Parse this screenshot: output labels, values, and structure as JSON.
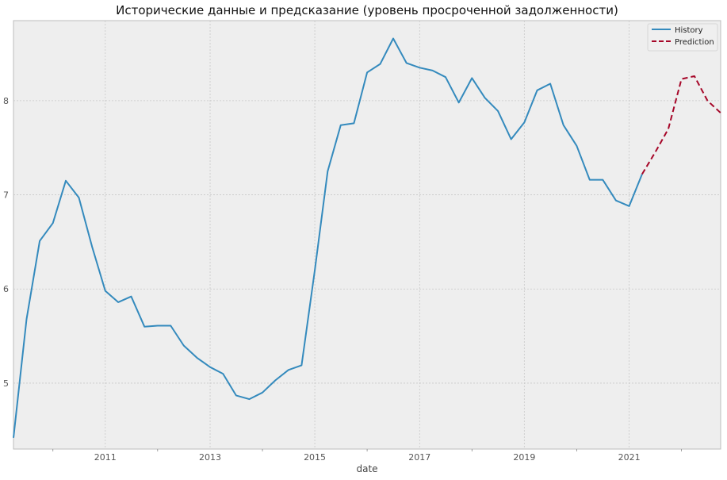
{
  "chart_data": {
    "type": "line",
    "title": "Исторические данные и предсказание (уровень просроченной задолженности)",
    "xlabel": "date",
    "ylabel": "",
    "xlim": [
      "2009-04-01",
      "2022-10-01"
    ],
    "ylim": [
      4.3,
      8.85
    ],
    "x_ticks": [
      "2011",
      "2013",
      "2015",
      "2017",
      "2019",
      "2021"
    ],
    "y_ticks": [
      5,
      6,
      7,
      8
    ],
    "grid": true,
    "legend_placement": "top-right",
    "series": [
      {
        "name": "History",
        "color": "#348ABD",
        "line_style": "solid",
        "points": [
          [
            "2009-04-01",
            4.42
          ],
          [
            "2009-07-01",
            5.68
          ],
          [
            "2009-10-01",
            6.51
          ],
          [
            "2010-01-01",
            6.7
          ],
          [
            "2010-04-01",
            7.15
          ],
          [
            "2010-07-01",
            6.97
          ],
          [
            "2010-10-01",
            6.45
          ],
          [
            "2011-01-01",
            5.98
          ],
          [
            "2011-04-01",
            5.86
          ],
          [
            "2011-07-01",
            5.92
          ],
          [
            "2011-10-01",
            5.6
          ],
          [
            "2012-01-01",
            5.61
          ],
          [
            "2012-04-01",
            5.61
          ],
          [
            "2012-07-01",
            5.4
          ],
          [
            "2012-10-01",
            5.27
          ],
          [
            "2013-01-01",
            5.17
          ],
          [
            "2013-04-01",
            5.1
          ],
          [
            "2013-07-01",
            4.87
          ],
          [
            "2013-10-01",
            4.83
          ],
          [
            "2014-01-01",
            4.9
          ],
          [
            "2014-04-01",
            5.03
          ],
          [
            "2014-07-01",
            5.14
          ],
          [
            "2014-10-01",
            5.19
          ],
          [
            "2015-01-01",
            6.2
          ],
          [
            "2015-04-01",
            7.25
          ],
          [
            "2015-07-01",
            7.74
          ],
          [
            "2015-10-01",
            7.76
          ],
          [
            "2016-01-01",
            8.3
          ],
          [
            "2016-04-01",
            8.39
          ],
          [
            "2016-07-01",
            8.66
          ],
          [
            "2016-10-01",
            8.4
          ],
          [
            "2017-01-01",
            8.35
          ],
          [
            "2017-04-01",
            8.32
          ],
          [
            "2017-07-01",
            8.25
          ],
          [
            "2017-10-01",
            7.98
          ],
          [
            "2018-01-01",
            8.24
          ],
          [
            "2018-04-01",
            8.03
          ],
          [
            "2018-07-01",
            7.89
          ],
          [
            "2018-10-01",
            7.59
          ],
          [
            "2019-01-01",
            7.77
          ],
          [
            "2019-04-01",
            8.11
          ],
          [
            "2019-07-01",
            8.18
          ],
          [
            "2019-10-01",
            7.74
          ],
          [
            "2020-01-01",
            7.52
          ],
          [
            "2020-04-01",
            7.16
          ],
          [
            "2020-07-01",
            7.16
          ],
          [
            "2020-10-01",
            6.94
          ],
          [
            "2021-01-01",
            6.88
          ],
          [
            "2021-04-01",
            7.22
          ]
        ]
      },
      {
        "name": "Prediction",
        "color": "#A60628",
        "line_style": "dashed",
        "points": [
          [
            "2021-04-01",
            7.22
          ],
          [
            "2021-07-01",
            7.45
          ],
          [
            "2021-10-01",
            7.7
          ],
          [
            "2022-01-01",
            8.23
          ],
          [
            "2022-04-01",
            8.26
          ],
          [
            "2022-07-01",
            8.0
          ],
          [
            "2022-10-01",
            7.87
          ]
        ]
      }
    ]
  }
}
